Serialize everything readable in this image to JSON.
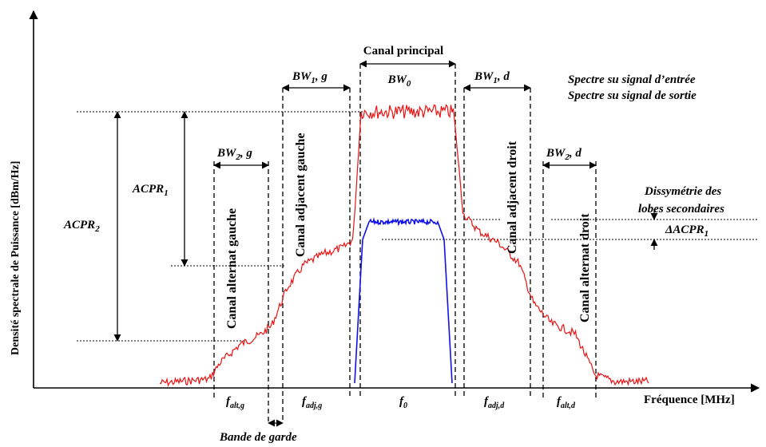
{
  "axes": {
    "y_title": "Densité spectrale de Puissance [dBm/Hz]",
    "x_title": "Fréquence [MHz]"
  },
  "bandwidths": {
    "bw0": "BW",
    "bw0_sub": "0",
    "bw1_left": "BW",
    "bw1_left_sub": "1",
    "bw1_left_suffix": ", g",
    "bw1_right": "BW",
    "bw1_right_sub": "1",
    "bw1_right_suffix": ", d",
    "bw2_left": "BW",
    "bw2_left_sub": "2",
    "bw2_left_suffix": ", g",
    "bw2_right": "BW",
    "bw2_right_sub": "2",
    "bw2_right_suffix": ", d"
  },
  "channels": {
    "main": "Canal principal",
    "adj_left": "Canal adjacent gauche",
    "adj_right": "Canal adjacent droit",
    "alt_left": "Canal alternat gauche",
    "alt_right": "Canal alternat droit"
  },
  "legend": {
    "input": "Spectre su signal d’entrée",
    "output": "Spectre su signal de sortie",
    "input_color": "#1010ee",
    "output_color": "#ee1111"
  },
  "acpr": {
    "acpr1": "ACPR",
    "acpr1_sub": "1",
    "acpr2": "ACPR",
    "acpr2_sub": "2",
    "asym_line1": "Dissymétrie des",
    "asym_line2": "lobes secondaires",
    "delta": "ΔACPR",
    "delta_sub": "1"
  },
  "x_ticks": {
    "f_alt_g": "f",
    "f_alt_g_sub": "alt,g",
    "f_adj_g": "f",
    "f_adj_g_sub": "adj,g",
    "f0": "f",
    "f0_sub": "0",
    "f_adj_d": "f",
    "f_adj_d_sub": "adj,d",
    "f_alt_d": "f",
    "f_alt_d_sub": "alt,d"
  },
  "guard_band": "Bande de garde"
}
